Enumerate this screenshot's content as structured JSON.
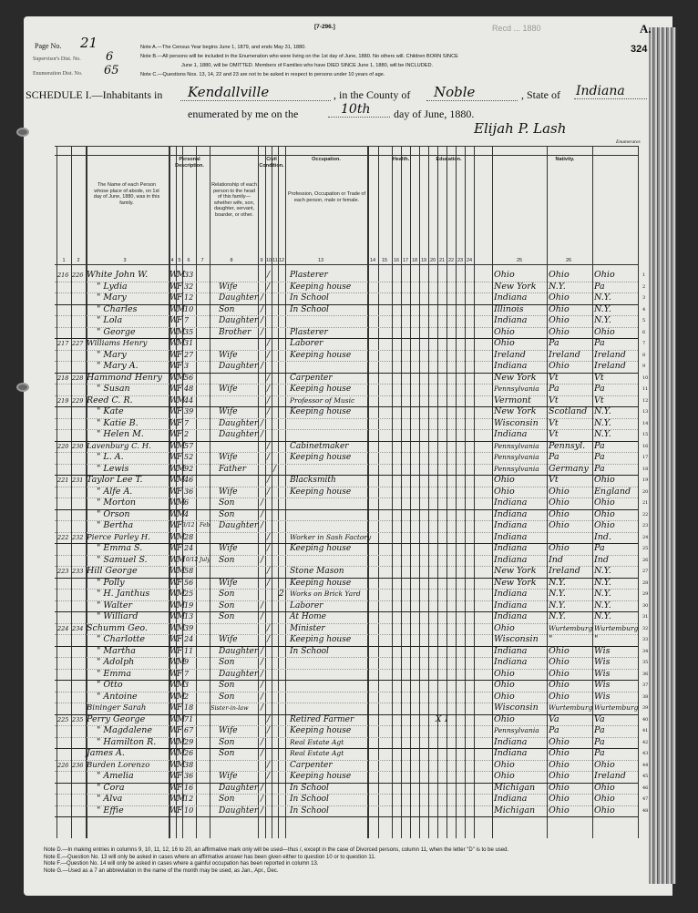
{
  "form_number": "[7-296.]",
  "stamp": "Recd ... 1880",
  "sheet_letter": "A.",
  "stamped_page": "324",
  "page_no": {
    "label": "Page No.",
    "value": "21"
  },
  "supervisor_dist": {
    "label": "Supervisor's Dist. No.",
    "value": "6"
  },
  "enumeration_dist": {
    "label": "Enumeration Dist. No.",
    "value": "65"
  },
  "notes_top": [
    "Note A.—The Census Year begins June 1, 1879, and ends May 31, 1880.",
    "Note B.—All persons will be included in the Enumeration who were living on the 1st day of June, 1880. No others will. Children BORN SINCE",
    "June 1, 1880, will be OMITTED. Members of Families who have DIED SINCE June 1, 1880, will be INCLUDED.",
    "Note C.—Questions Nos. 13, 14, 22 and 23 are not to be asked in respect to persons under 10 years of age."
  ],
  "schedule": {
    "title": "SCHEDULE I.—Inhabitants in",
    "place": "Kendallville",
    "county_label": ", in the County of",
    "county": "Noble",
    "state_label": ", State of",
    "state": "Indiana",
    "enumerated_label": "enumerated by me on the",
    "day": "10th",
    "date_suffix": "day of June, 1880.",
    "enumerator": "Elijah P. Lash",
    "enumerator_label": "Enumerator."
  },
  "column_headers": {
    "personal": "Personal Description.",
    "civil": "Civil Condition.",
    "occupation_group": "Occupation.",
    "health": "Health.",
    "education": "Education.",
    "nativity": "Nativity.",
    "name": "The Name of each Person whose place of abode, on 1st day of June, 1880, was in this family.",
    "relationship": "Relationship of each person to the head of this family—whether wife, son, daughter, servant, boarder, or other.",
    "occupation": "Profession, Occupation or Trade of each person, male or female.",
    "numbers": [
      "1",
      "2",
      "3",
      "4",
      "5",
      "6",
      "7",
      "8",
      "9",
      "10",
      "11",
      "12",
      "13",
      "14",
      "15",
      "16",
      "17",
      "18",
      "19",
      "20",
      "21",
      "22",
      "23",
      "24",
      "25",
      "26"
    ]
  },
  "rows": [
    {
      "dw": "216",
      "fam": "226",
      "name": "White John W.",
      "c": "W",
      "s": "M",
      "age": "33",
      "mo": "",
      "rel": "",
      "cs": "M",
      "occ": "Plasterer",
      "bp": "Ohio",
      "fbp": "Ohio",
      "mbp": "Ohio"
    },
    {
      "dw": "",
      "fam": "",
      "name": "\" Lydia",
      "c": "W",
      "s": "F",
      "age": "32",
      "mo": "",
      "rel": "Wife",
      "cs": "M",
      "occ": "Keeping house",
      "bp": "New York",
      "fbp": "N.Y.",
      "mbp": "Pa"
    },
    {
      "dw": "",
      "fam": "",
      "name": "\" Mary",
      "c": "W",
      "s": "F",
      "age": "12",
      "mo": "",
      "rel": "Daughter",
      "cs": "S",
      "occ": "In School",
      "bp": "Indiana",
      "fbp": "Ohio",
      "mbp": "N.Y."
    },
    {
      "dw": "",
      "fam": "",
      "name": "\" Charles",
      "c": "W",
      "s": "M",
      "age": "10",
      "mo": "",
      "rel": "Son",
      "cs": "S",
      "occ": "In School",
      "bp": "Illinois",
      "fbp": "Ohio",
      "mbp": "N.Y."
    },
    {
      "dw": "",
      "fam": "",
      "name": "\" Lola",
      "c": "W",
      "s": "F",
      "age": "7",
      "mo": "",
      "rel": "Daughter",
      "cs": "S",
      "occ": "",
      "bp": "Indiana",
      "fbp": "Ohio",
      "mbp": "N.Y."
    },
    {
      "dw": "",
      "fam": "",
      "name": "\" George",
      "c": "W",
      "s": "M",
      "age": "35",
      "mo": "",
      "rel": "Brother",
      "cs": "S",
      "occ": "Plasterer",
      "bp": "Ohio",
      "fbp": "Ohio",
      "mbp": "Ohio"
    },
    {
      "dw": "217",
      "fam": "227",
      "name": "Williams Henry",
      "c": "W",
      "s": "M",
      "age": "31",
      "mo": "",
      "rel": "",
      "cs": "M",
      "occ": "Laborer",
      "bp": "Ohio",
      "fbp": "Pa",
      "mbp": "Pa"
    },
    {
      "dw": "",
      "fam": "",
      "name": "\" Mary",
      "c": "W",
      "s": "F",
      "age": "27",
      "mo": "",
      "rel": "Wife",
      "cs": "M",
      "occ": "Keeping house",
      "bp": "Ireland",
      "fbp": "Ireland",
      "mbp": "Ireland"
    },
    {
      "dw": "",
      "fam": "",
      "name": "\" Mary A.",
      "c": "W",
      "s": "F",
      "age": "3",
      "mo": "",
      "rel": "Daughter",
      "cs": "S",
      "occ": "",
      "bp": "Indiana",
      "fbp": "Ohio",
      "mbp": "Ireland"
    },
    {
      "dw": "218",
      "fam": "228",
      "name": "Hammond Henry",
      "c": "W",
      "s": "M",
      "age": "56",
      "mo": "",
      "rel": "",
      "cs": "M",
      "occ": "Carpenter",
      "bp": "New York",
      "fbp": "Vt",
      "mbp": "Vt"
    },
    {
      "dw": "",
      "fam": "",
      "name": "\" Susan",
      "c": "W",
      "s": "F",
      "age": "48",
      "mo": "",
      "rel": "Wife",
      "cs": "M",
      "occ": "Keeping house",
      "bp": "Pennsylvania",
      "fbp": "Pa",
      "mbp": "Pa"
    },
    {
      "dw": "219",
      "fam": "229",
      "name": "Reed C. R.",
      "c": "W",
      "s": "M",
      "age": "44",
      "mo": "",
      "rel": "",
      "cs": "M",
      "occ": "Professor of Music",
      "bp": "Vermont",
      "fbp": "Vt",
      "mbp": "Vt"
    },
    {
      "dw": "",
      "fam": "",
      "name": "\" Kate",
      "c": "W",
      "s": "F",
      "age": "39",
      "mo": "",
      "rel": "Wife",
      "cs": "M",
      "occ": "Keeping house",
      "bp": "New York",
      "fbp": "Scotland",
      "mbp": "N.Y."
    },
    {
      "dw": "",
      "fam": "",
      "name": "\" Katie B.",
      "c": "W",
      "s": "F",
      "age": "7",
      "mo": "",
      "rel": "Daughter",
      "cs": "S",
      "occ": "",
      "bp": "Wisconsin",
      "fbp": "Vt",
      "mbp": "N.Y."
    },
    {
      "dw": "",
      "fam": "",
      "name": "\" Helen M.",
      "c": "W",
      "s": "F",
      "age": "2",
      "mo": "",
      "rel": "Daughter",
      "cs": "S",
      "occ": "",
      "bp": "Indiana",
      "fbp": "Vt",
      "mbp": "N.Y."
    },
    {
      "dw": "220",
      "fam": "230",
      "name": "Lavenburg C. H.",
      "c": "W",
      "s": "M",
      "age": "57",
      "mo": "",
      "rel": "",
      "cs": "M",
      "occ": "Cabinetmaker",
      "bp": "Pennsylvania",
      "fbp": "Pennsyl.",
      "mbp": "Pa"
    },
    {
      "dw": "",
      "fam": "",
      "name": "\" L. A.",
      "c": "W",
      "s": "F",
      "age": "52",
      "mo": "",
      "rel": "Wife",
      "cs": "M",
      "occ": "Keeping house",
      "bp": "Pennsylvania",
      "fbp": "Pa",
      "mbp": "Pa"
    },
    {
      "dw": "",
      "fam": "",
      "name": "\" Lewis",
      "c": "W",
      "s": "M",
      "age": "92",
      "mo": "",
      "rel": "Father",
      "cs": "W",
      "occ": "",
      "bp": "Pennsylvania",
      "fbp": "Germany",
      "mbp": "Pa"
    },
    {
      "dw": "221",
      "fam": "231",
      "name": "Taylor Lee T.",
      "c": "W",
      "s": "M",
      "age": "46",
      "mo": "",
      "rel": "",
      "cs": "M",
      "occ": "Blacksmith",
      "bp": "Ohio",
      "fbp": "Vt",
      "mbp": "Ohio"
    },
    {
      "dw": "",
      "fam": "",
      "name": "\" Alfe A.",
      "c": "W",
      "s": "F",
      "age": "36",
      "mo": "",
      "rel": "Wife",
      "cs": "M",
      "occ": "Keeping house",
      "bp": "Ohio",
      "fbp": "Ohio",
      "mbp": "England"
    },
    {
      "dw": "",
      "fam": "",
      "name": "\" Morton",
      "c": "W",
      "s": "M",
      "age": "6",
      "mo": "",
      "rel": "Son",
      "cs": "S",
      "occ": "",
      "bp": "Indiana",
      "fbp": "Ohio",
      "mbp": "Ohio"
    },
    {
      "dw": "",
      "fam": "",
      "name": "\" Orson",
      "c": "W",
      "s": "M",
      "age": "4",
      "mo": "",
      "rel": "Son",
      "cs": "S",
      "occ": "",
      "bp": "Indiana",
      "fbp": "Ohio",
      "mbp": "Ohio"
    },
    {
      "dw": "",
      "fam": "",
      "name": "\" Bertha",
      "c": "W",
      "s": "F",
      "age": "3/12",
      "mo": "Feb",
      "rel": "Daughter",
      "cs": "S",
      "occ": "",
      "bp": "Indiana",
      "fbp": "Ohio",
      "mbp": "Ohio"
    },
    {
      "dw": "222",
      "fam": "232",
      "name": "Pierce Parley H.",
      "c": "W",
      "s": "M",
      "age": "28",
      "mo": "",
      "rel": "",
      "cs": "M",
      "occ": "Worker in Sash Factory",
      "bp": "Indiana",
      "fbp": "",
      "mbp": "Ind."
    },
    {
      "dw": "",
      "fam": "",
      "name": "\" Emma S.",
      "c": "W",
      "s": "F",
      "age": "24",
      "mo": "",
      "rel": "Wife",
      "cs": "M",
      "occ": "Keeping house",
      "bp": "Indiana",
      "fbp": "Ohio",
      "mbp": "Pa"
    },
    {
      "dw": "",
      "fam": "",
      "name": "\" Samuel S.",
      "c": "W",
      "s": "M",
      "age": "10/12",
      "mo": "July",
      "rel": "Son",
      "cs": "S",
      "occ": "",
      "bp": "Indiana",
      "fbp": "Ind",
      "mbp": "Ind"
    },
    {
      "dw": "223",
      "fam": "233",
      "name": "Hill George",
      "c": "W",
      "s": "M",
      "age": "58",
      "mo": "",
      "rel": "",
      "cs": "M",
      "occ": "Stone Mason",
      "bp": "New York",
      "fbp": "Ireland",
      "mbp": "N.Y."
    },
    {
      "dw": "",
      "fam": "",
      "name": "\" Polly",
      "c": "W",
      "s": "F",
      "age": "56",
      "mo": "",
      "rel": "Wife",
      "cs": "M",
      "occ": "Keeping house",
      "bp": "New York",
      "fbp": "N.Y.",
      "mbp": "N.Y."
    },
    {
      "dw": "",
      "fam": "",
      "name": "\" H. Janthus",
      "c": "W",
      "s": "M",
      "age": "25",
      "mo": "",
      "rel": "Son",
      "cs": "2",
      "occ": "Works on Brick Yard",
      "bp": "Indiana",
      "fbp": "N.Y.",
      "mbp": "N.Y."
    },
    {
      "dw": "",
      "fam": "",
      "name": "\" Walter",
      "c": "W",
      "s": "M",
      "age": "19",
      "mo": "",
      "rel": "Son",
      "cs": "S",
      "occ": "Laborer",
      "bp": "Indiana",
      "fbp": "N.Y.",
      "mbp": "N.Y."
    },
    {
      "dw": "",
      "fam": "",
      "name": "\" Williard",
      "c": "W",
      "s": "M",
      "age": "13",
      "mo": "",
      "rel": "Son",
      "cs": "S",
      "occ": "At Home",
      "bp": "Indiana",
      "fbp": "N.Y.",
      "mbp": "N.Y."
    },
    {
      "dw": "224",
      "fam": "234",
      "name": "Schumm Geo.",
      "c": "W",
      "s": "M",
      "age": "39",
      "mo": "",
      "rel": "",
      "cs": "M",
      "occ": "Minister",
      "bp": "Ohio",
      "fbp": "Wurtemburg",
      "mbp": "Wurtemburg"
    },
    {
      "dw": "",
      "fam": "",
      "name": "\" Charlotte",
      "c": "W",
      "s": "F",
      "age": "24",
      "mo": "",
      "rel": "Wife",
      "cs": "M",
      "occ": "Keeping house",
      "bp": "Wisconsin",
      "fbp": "\"",
      "mbp": "\""
    },
    {
      "dw": "",
      "fam": "",
      "name": "\" Martha",
      "c": "W",
      "s": "F",
      "age": "11",
      "mo": "",
      "rel": "Daughter",
      "cs": "S",
      "occ": "In School",
      "bp": "Indiana",
      "fbp": "Ohio",
      "mbp": "Wis"
    },
    {
      "dw": "",
      "fam": "",
      "name": "\" Adolph",
      "c": "W",
      "s": "M",
      "age": "9",
      "mo": "",
      "rel": "Son",
      "cs": "S",
      "occ": "",
      "bp": "Indiana",
      "fbp": "Ohio",
      "mbp": "Wis"
    },
    {
      "dw": "",
      "fam": "",
      "name": "\" Emma",
      "c": "W",
      "s": "F",
      "age": "7",
      "mo": "",
      "rel": "Daughter",
      "cs": "S",
      "occ": "",
      "bp": "Ohio",
      "fbp": "Ohio",
      "mbp": "Wis"
    },
    {
      "dw": "",
      "fam": "",
      "name": "\" Otto",
      "c": "W",
      "s": "M",
      "age": "3",
      "mo": "",
      "rel": "Son",
      "cs": "S",
      "occ": "",
      "bp": "Ohio",
      "fbp": "Ohio",
      "mbp": "Wis"
    },
    {
      "dw": "",
      "fam": "",
      "name": "\" Antoine",
      "c": "W",
      "s": "M",
      "age": "2",
      "mo": "",
      "rel": "Son",
      "cs": "S",
      "occ": "",
      "bp": "Ohio",
      "fbp": "Ohio",
      "mbp": "Wis"
    },
    {
      "dw": "",
      "fam": "",
      "name": "Bininger Sarah",
      "c": "W",
      "s": "F",
      "age": "18",
      "mo": "",
      "rel": "Sister-in-law",
      "cs": "S",
      "occ": "",
      "bp": "Wisconsin",
      "fbp": "Wurtemburg",
      "mbp": "Wurtemburg"
    },
    {
      "dw": "225",
      "fam": "235",
      "name": "Perry George",
      "c": "W",
      "s": "M",
      "age": "71",
      "mo": "",
      "rel": "",
      "cs": "M",
      "occ": "Retired Farmer",
      "bp": "Ohio",
      "fbp": "Va",
      "mbp": "Va",
      "extra": "X 1"
    },
    {
      "dw": "",
      "fam": "",
      "name": "\" Magdalene",
      "c": "W",
      "s": "F",
      "age": "67",
      "mo": "",
      "rel": "Wife",
      "cs": "M",
      "occ": "Keeping house",
      "bp": "Pennsylvania",
      "fbp": "Pa",
      "mbp": "Pa"
    },
    {
      "dw": "",
      "fam": "",
      "name": "\" Hamilton R.",
      "c": "W",
      "s": "M",
      "age": "29",
      "mo": "",
      "rel": "Son",
      "cs": "S",
      "occ": "Real Estate Agt",
      "bp": "Indiana",
      "fbp": "Ohio",
      "mbp": "Pa"
    },
    {
      "dw": "",
      "fam": "",
      "name": "James A.",
      "c": "W",
      "s": "M",
      "age": "26",
      "mo": "",
      "rel": "Son",
      "cs": "S",
      "occ": "Real Estate Agt",
      "bp": "Indiana",
      "fbp": "Ohio",
      "mbp": "Pa"
    },
    {
      "dw": "226",
      "fam": "236",
      "name": "Burden Lorenzo",
      "c": "W",
      "s": "M",
      "age": "38",
      "mo": "",
      "rel": "",
      "cs": "M",
      "occ": "Carpenter",
      "bp": "Ohio",
      "fbp": "Ohio",
      "mbp": "Ohio"
    },
    {
      "dw": "",
      "fam": "",
      "name": "\" Amelia",
      "c": "W",
      "s": "F",
      "age": "36",
      "mo": "",
      "rel": "Wife",
      "cs": "M",
      "occ": "Keeping house",
      "bp": "Ohio",
      "fbp": "Ohio",
      "mbp": "Ireland"
    },
    {
      "dw": "",
      "fam": "",
      "name": "\" Cora",
      "c": "W",
      "s": "F",
      "age": "16",
      "mo": "",
      "rel": "Daughter",
      "cs": "S",
      "occ": "In School",
      "bp": "Michigan",
      "fbp": "Ohio",
      "mbp": "Ohio"
    },
    {
      "dw": "",
      "fam": "",
      "name": "\" Alva",
      "c": "W",
      "s": "M",
      "age": "12",
      "mo": "",
      "rel": "Son",
      "cs": "S",
      "occ": "In School",
      "bp": "Indiana",
      "fbp": "Ohio",
      "mbp": "Ohio"
    },
    {
      "dw": "",
      "fam": "",
      "name": "\" Effie",
      "c": "W",
      "s": "F",
      "age": "10",
      "mo": "",
      "rel": "Daughter",
      "cs": "S",
      "occ": "In School",
      "bp": "Michigan",
      "fbp": "Ohio",
      "mbp": "Ohio"
    }
  ],
  "notes_bottom": [
    "Note D.—In making entries in columns 9, 10, 11, 12, 16 to 20, an affirmative mark only will be used—thus /, except in the case of Divorced persons, column 11, when the letter \"D\" is to be used.",
    "Note E.—Question No. 13 will only be asked in cases where an affirmative answer has been given either to question 10 or to question 11.",
    "Note F.—Question No. 14 will only be asked in cases where a gainful occupation has been reported in column 13.",
    "Note G.—Used as a 7 an abbreviation in the name of the month may be used, as Jan., Apr., Dec."
  ]
}
